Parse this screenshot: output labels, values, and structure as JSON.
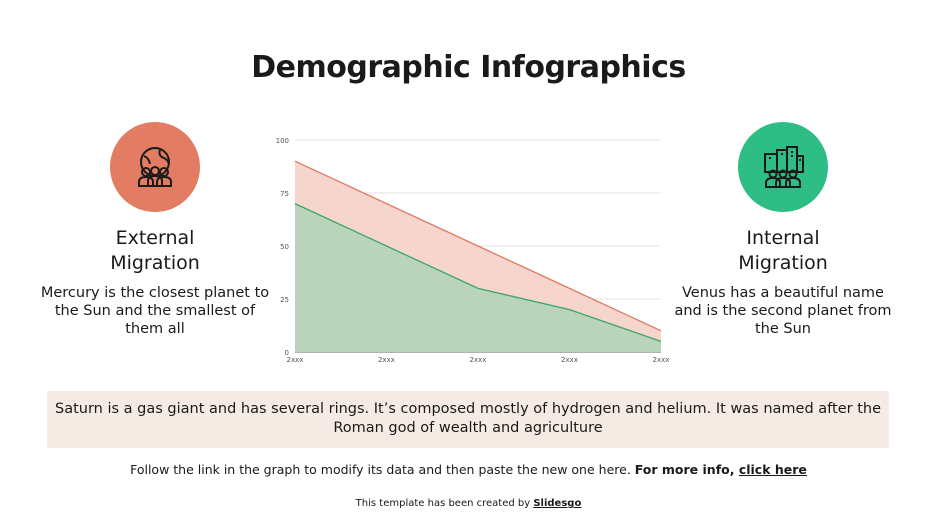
{
  "title": "Demographic Infographics",
  "left": {
    "heading_line1": "External",
    "heading_line2": "Migration",
    "text": "Mercury is the closest planet to the Sun and the smallest of them all",
    "icon": "globe-people-icon",
    "color": "#e27c62"
  },
  "right": {
    "heading_line1": "Internal",
    "heading_line2": "Migration",
    "text": "Venus has a beautiful name and is the second planet from the Sun",
    "icon": "city-people-icon",
    "color": "#2ebd85"
  },
  "note": "Saturn is a gas giant and has several rings. It’s composed mostly of hydrogen and helium. It was named after the Roman god of wealth and agriculture",
  "follow": {
    "text": "Follow the link in the graph to modify its data and then paste the new one here. ",
    "bold": "For more info, ",
    "link": "click here"
  },
  "credit": {
    "text": "This template has been created by ",
    "link": "Slidesgo"
  },
  "chart_data": {
    "type": "area",
    "title": "",
    "xlabel": "",
    "ylabel": "",
    "categories": [
      "2xxx",
      "2xxx",
      "2xxx",
      "2xxx",
      "2xxx"
    ],
    "y_ticks": [
      0,
      25,
      50,
      75,
      100
    ],
    "ylim": [
      0,
      100
    ],
    "grid": true,
    "legend": "none",
    "series": [
      {
        "name": "External Migration",
        "color": "#e07a62",
        "fill": "#f6d5cc",
        "values": [
          90,
          70,
          50,
          30,
          10
        ]
      },
      {
        "name": "Internal Migration",
        "color": "#3aa56a",
        "fill": "#b9d4bb",
        "values": [
          70,
          50,
          30,
          20,
          5
        ]
      }
    ]
  }
}
